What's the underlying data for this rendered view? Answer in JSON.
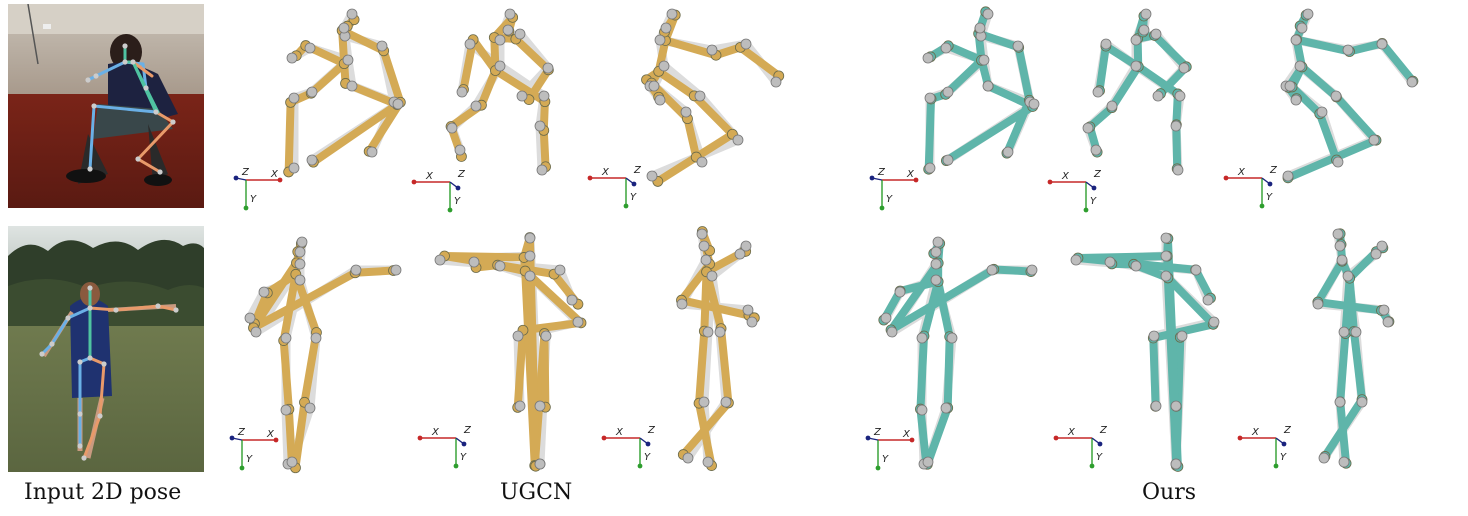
{
  "captions": {
    "input": "Input 2D pose",
    "ugcn": "UGCN",
    "ours": "Ours"
  },
  "axis_labels": {
    "x": "X",
    "y": "Y",
    "z": "Z"
  },
  "colors": {
    "ground_truth": "#dcdcdc",
    "ugcn": "#d4aa55",
    "ours": "#5fb5aa",
    "joint": "#bdbdbd",
    "left_2d": "#6ab0e6",
    "right_2d": "#e89a6a",
    "center_2d": "#4fc3a1",
    "axis_x": "#c62828",
    "axis_y": "#2e9e2e",
    "axis_z": "#1a237e"
  }
}
